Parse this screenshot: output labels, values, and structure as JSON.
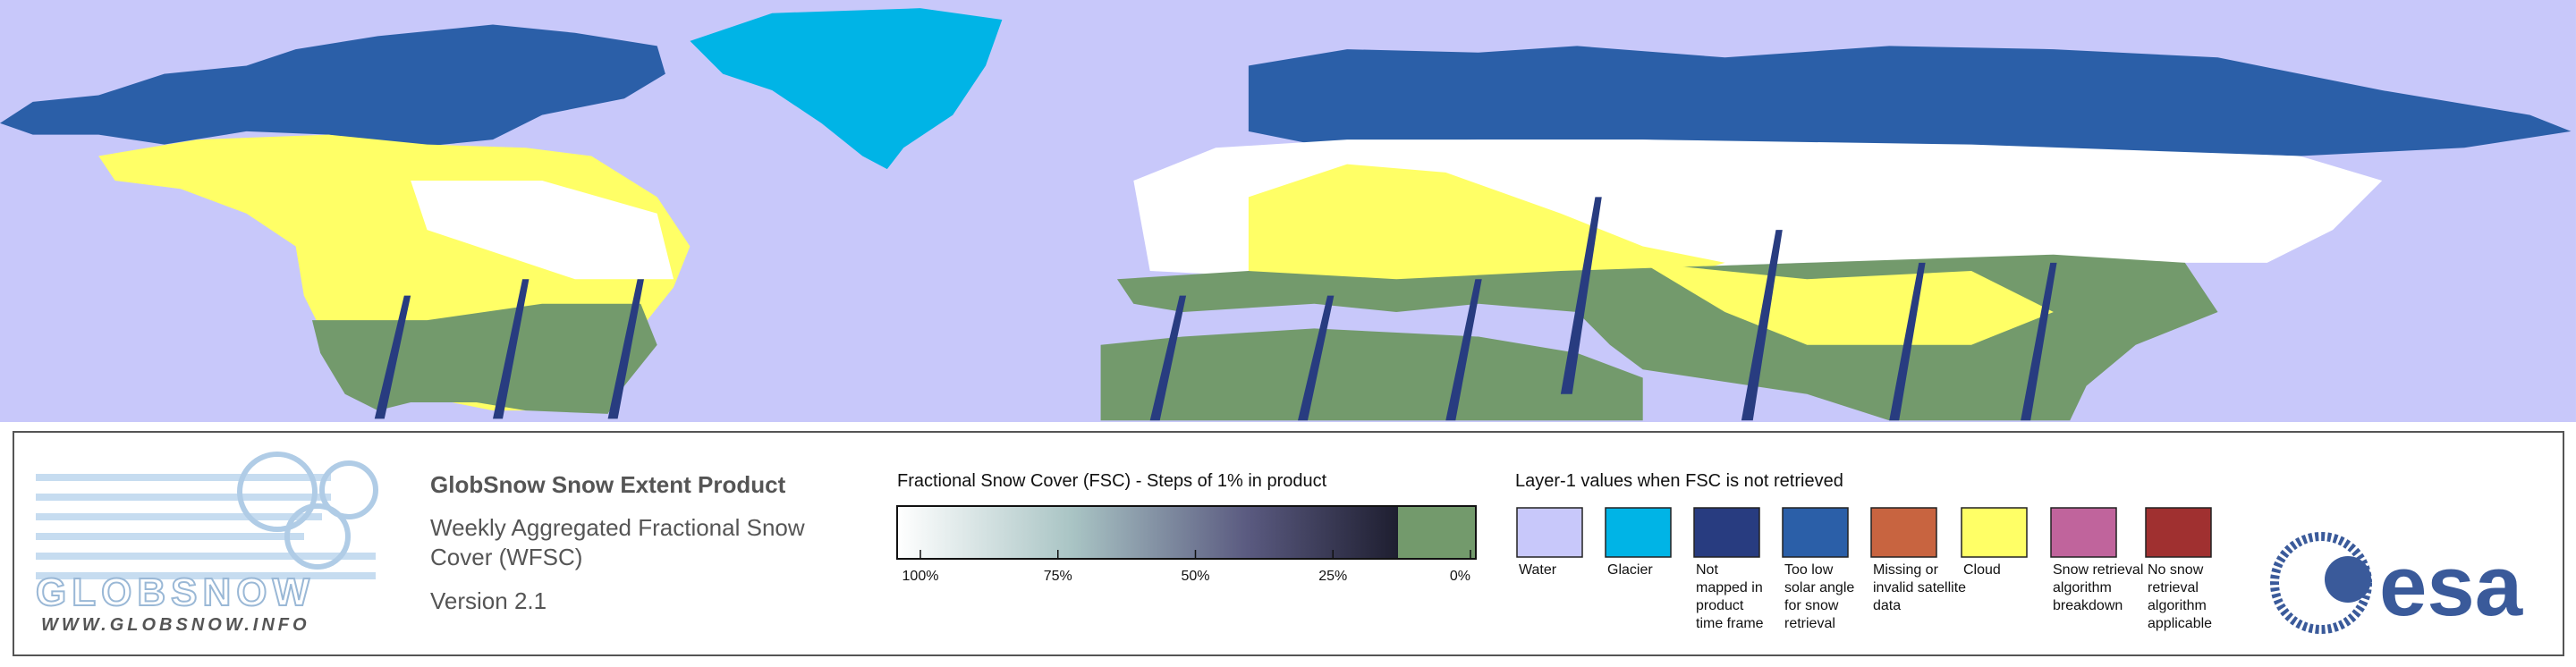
{
  "logo": {
    "name": "GLOBSNOW",
    "url": "WWW.GLOBSNOW.INFO"
  },
  "product": {
    "title": "GlobSnow Snow Extent Product",
    "subtitle_lines": [
      "Weekly Aggregated Fractional Snow",
      "Cover (WFSC)"
    ],
    "version": "Version 2.1"
  },
  "colorbar": {
    "title": "Fractional Snow Cover (FSC) - Steps of 1% in product",
    "labels": [
      "100%",
      "75%",
      "50%",
      "25%",
      "0%"
    ]
  },
  "layer1": {
    "title": "Layer-1 values when FSC is not retrieved",
    "items": [
      {
        "color": "#c8c8fa",
        "label_lines": [
          "Water"
        ]
      },
      {
        "color": "#00b4e6",
        "label_lines": [
          "Glacier"
        ]
      },
      {
        "color": "#283c80",
        "label_lines": [
          "Not",
          "mapped in",
          "product",
          "time frame"
        ]
      },
      {
        "color": "#2b5fa8",
        "label_lines": [
          "Too low",
          "solar angle",
          "for snow",
          "retrieval"
        ]
      },
      {
        "color": "#c86440",
        "label_lines": [
          "Missing or",
          "invalid satellite",
          "data"
        ]
      },
      {
        "color": "#ffff66",
        "label_lines": [
          "Cloud"
        ]
      },
      {
        "color": "#c0649c",
        "label_lines": [
          "Snow retrieval",
          "algorithm",
          "breakdown"
        ]
      },
      {
        "color": "#a03030",
        "label_lines": [
          "No snow",
          "retrieval",
          "algorithm",
          "applicable"
        ]
      }
    ]
  },
  "agency": {
    "name": "esa"
  }
}
